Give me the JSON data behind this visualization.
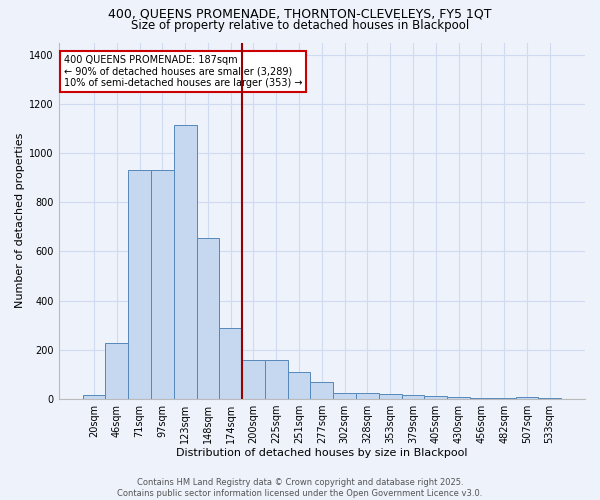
{
  "title_line1": "400, QUEENS PROMENADE, THORNTON-CLEVELEYS, FY5 1QT",
  "title_line2": "Size of property relative to detached houses in Blackpool",
  "xlabel": "Distribution of detached houses by size in Blackpool",
  "ylabel": "Number of detached properties",
  "categories": [
    "20sqm",
    "46sqm",
    "71sqm",
    "97sqm",
    "123sqm",
    "148sqm",
    "174sqm",
    "200sqm",
    "225sqm",
    "251sqm",
    "277sqm",
    "302sqm",
    "328sqm",
    "353sqm",
    "379sqm",
    "405sqm",
    "430sqm",
    "456sqm",
    "482sqm",
    "507sqm",
    "533sqm"
  ],
  "values": [
    15,
    228,
    930,
    930,
    1115,
    655,
    290,
    160,
    160,
    110,
    70,
    25,
    25,
    20,
    15,
    12,
    8,
    5,
    3,
    10,
    3
  ],
  "bar_color": "#c5d8f0",
  "bar_edge_color": "#5588bb",
  "vline_x_index": 6.5,
  "vline_color": "#990000",
  "annotation_text": "400 QUEENS PROMENADE: 187sqm\n← 90% of detached houses are smaller (3,289)\n10% of semi-detached houses are larger (353) →",
  "annotation_box_color": "#ffffff",
  "annotation_box_edge_color": "#cc0000",
  "footer_line1": "Contains HM Land Registry data © Crown copyright and database right 2025.",
  "footer_line2": "Contains public sector information licensed under the Open Government Licence v3.0.",
  "bg_color": "#edf2fb",
  "grid_color": "#d0daf0",
  "ylim": [
    0,
    1450
  ],
  "yticks": [
    0,
    200,
    400,
    600,
    800,
    1000,
    1200,
    1400
  ],
  "title_fontsize": 9,
  "subtitle_fontsize": 8.5,
  "tick_fontsize": 7,
  "label_fontsize": 8,
  "footer_fontsize": 6
}
